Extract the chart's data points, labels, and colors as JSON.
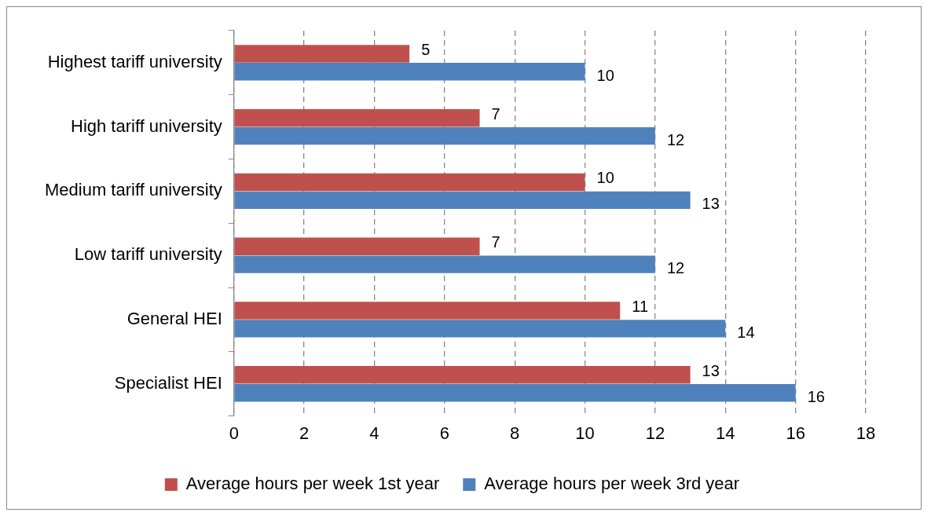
{
  "chart_data": {
    "type": "bar",
    "orientation": "horizontal",
    "categories": [
      "Highest tariff university",
      "High tariff university",
      "Medium tariff university",
      "Low tariff university",
      "General HEI",
      "Specialist HEI"
    ],
    "series": [
      {
        "name": "Average hours per week 1st year",
        "color": "#c0504d",
        "values": [
          5,
          7,
          10,
          7,
          11,
          13
        ]
      },
      {
        "name": "Average hours per week 3rd year",
        "color": "#4f81bd",
        "values": [
          10,
          12,
          13,
          12,
          14,
          16
        ]
      }
    ],
    "xlim": [
      0,
      18
    ],
    "xticks": [
      0,
      2,
      4,
      6,
      8,
      10,
      12,
      14,
      16,
      18
    ],
    "grid": "x",
    "legend": "bottom",
    "data_labels": true
  }
}
